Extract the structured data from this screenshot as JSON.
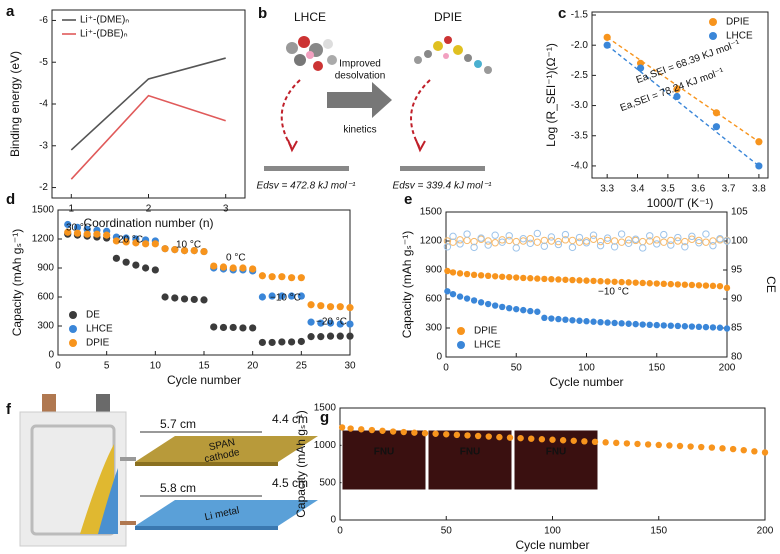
{
  "chart_data": [
    {
      "type": "line",
      "panel": "a",
      "x": [
        1,
        2,
        3
      ],
      "xlim": [
        0.75,
        3.25
      ],
      "xticks": [
        1,
        2,
        3
      ],
      "ylim": [
        -1.75,
        -6.25
      ],
      "yticks": [
        -2,
        -3,
        -4,
        -5,
        -6
      ],
      "x_label": "Coordination number (n)",
      "y_label": "Binding energy (eV)",
      "legend": "upper left",
      "series": [
        {
          "name": "Li⁺-(DME)ₙ",
          "color": "#555555",
          "values": [
            -2.9,
            -4.6,
            -5.1
          ]
        },
        {
          "name": "Li⁺-(DBE)ₙ",
          "color": "#e05a5a",
          "values": [
            -2.2,
            -4.2,
            -3.6
          ]
        }
      ]
    },
    {
      "type": "scatter",
      "panel": "c",
      "x": [
        3.3,
        3.41,
        3.53,
        3.66,
        3.8
      ],
      "xlim": [
        3.25,
        3.83
      ],
      "xticks": [
        3.3,
        3.4,
        3.5,
        3.6,
        3.7,
        3.8
      ],
      "ylim": [
        -4.2,
        -1.45
      ],
      "yticks": [
        {
          "value": -4,
          "label": "-4.0"
        },
        -3.5,
        {
          "value": -3,
          "label": "-3.0"
        },
        -2.5,
        {
          "value": -2,
          "label": "-2.0"
        },
        -1.5
      ],
      "x_label": "1000/T (K⁻¹)",
      "y_label": "Log (R_SEI⁻¹)(Ω⁻¹)",
      "legend": "upper right",
      "trendline": "dashed",
      "annotations": [
        "Ea,SEI = 68.39 KJ mol⁻¹",
        "Ea,SEI = 78.24 KJ mol⁻¹"
      ],
      "series": [
        {
          "name": "DPIE",
          "color": "#f7941d",
          "values": [
            -1.87,
            -2.3,
            -2.73,
            -3.12,
            -3.6
          ]
        },
        {
          "name": "LHCE",
          "color": "#3a86d8",
          "values": [
            -2.0,
            -2.38,
            -2.85,
            -3.35,
            -4.0
          ]
        }
      ]
    },
    {
      "type": "scatter",
      "panel": "d",
      "x": [
        1,
        2,
        3,
        4,
        5,
        6,
        7,
        8,
        9,
        10,
        11,
        12,
        13,
        14,
        15,
        16,
        17,
        18,
        19,
        20,
        21,
        22,
        23,
        24,
        25,
        26,
        27,
        28,
        29,
        30
      ],
      "xlim": [
        0,
        30
      ],
      "xticks": [
        0,
        5,
        10,
        15,
        20,
        25,
        30
      ],
      "ylim": [
        0,
        1500
      ],
      "yticks": [
        0,
        300,
        600,
        900,
        1200,
        1500
      ],
      "x_label": "Cycle number",
      "y_label": "Capacity (mAh gₛ⁻¹)",
      "legend": "lower left",
      "annotations": [
        "30 °C",
        "20 °C",
        "10 °C",
        "0 °C",
        "−10 °C",
        "−20 °C"
      ],
      "series": [
        {
          "name": "DE",
          "color": "#3b3b3b",
          "values": [
            1250,
            1240,
            1230,
            1220,
            1210,
            1000,
            960,
            930,
            900,
            880,
            600,
            590,
            580,
            575,
            570,
            290,
            285,
            285,
            280,
            280,
            130,
            130,
            135,
            135,
            140,
            190,
            190,
            195,
            195,
            195
          ]
        },
        {
          "name": "LHCE",
          "color": "#3a86d8",
          "values": [
            1350,
            1320,
            1300,
            1290,
            1280,
            1220,
            1210,
            1200,
            1190,
            1180,
            1100,
            1090,
            1080,
            1080,
            1070,
            900,
            890,
            880,
            880,
            870,
            600,
            610,
            610,
            610,
            610,
            340,
            330,
            330,
            320,
            320
          ]
        },
        {
          "name": "DPIE",
          "color": "#f7941d",
          "values": [
            1270,
            1260,
            1250,
            1250,
            1240,
            1180,
            1170,
            1160,
            1150,
            1150,
            1100,
            1090,
            1080,
            1080,
            1070,
            920,
            910,
            900,
            900,
            890,
            820,
            810,
            810,
            800,
            800,
            520,
            510,
            500,
            500,
            490
          ]
        }
      ]
    },
    {
      "type": "scatter",
      "panel": "e",
      "x": [
        1,
        5,
        10,
        15,
        20,
        25,
        30,
        35,
        40,
        45,
        50,
        55,
        60,
        65,
        70,
        75,
        80,
        85,
        90,
        95,
        100,
        105,
        110,
        115,
        120,
        125,
        130,
        135,
        140,
        145,
        150,
        155,
        160,
        165,
        170,
        175,
        180,
        185,
        190,
        195,
        200
      ],
      "xlim": [
        0,
        200
      ],
      "xticks": [
        0,
        50,
        100,
        150,
        200
      ],
      "ylim": [
        0,
        1500
      ],
      "yticks": [
        0,
        300,
        600,
        900,
        1200,
        1500
      ],
      "y2lim": [
        80,
        105
      ],
      "y2ticks": [
        80,
        85,
        90,
        95,
        100,
        105
      ],
      "x_label": "Cycle number",
      "y_label": "Capacity (mAh gₛ⁻¹)",
      "y2_label": "CE",
      "legend": "lower left",
      "annotations": [
        "−10 °C"
      ],
      "series": [
        {
          "name": "DPIE",
          "color": "#f7941d",
          "values": [
            890,
            875,
            865,
            858,
            850,
            845,
            840,
            835,
            830,
            826,
            822,
            818,
            815,
            811,
            808,
            805,
            802,
            799,
            796,
            793,
            790,
            787,
            784,
            781,
            778,
            775,
            772,
            769,
            766,
            763,
            760,
            757,
            754,
            751,
            748,
            745,
            742,
            739,
            736,
            733,
            715
          ]
        },
        {
          "name": "LHCE",
          "color": "#3a86d8",
          "values": [
            680,
            650,
            625,
            605,
            585,
            565,
            548,
            532,
            518,
            505,
            495,
            485,
            475,
            468,
            405,
            398,
            392,
            386,
            380,
            375,
            370,
            365,
            360,
            356,
            352,
            348,
            344,
            340,
            336,
            333,
            330,
            327,
            324,
            321,
            318,
            315,
            312,
            309,
            306,
            303,
            295
          ]
        },
        {
          "color": "#f7b96a",
          "axis": "y2",
          "marker": "open",
          "values": [
            100.0,
            99.8,
            100.2,
            100.1,
            99.9,
            100.3,
            100.0,
            99.7,
            100.2,
            100.1,
            99.9,
            100.0,
            100.4,
            99.8,
            100.1,
            100.0,
            99.9,
            100.2,
            100.1,
            99.8,
            100.0,
            100.3,
            99.9,
            100.1,
            100.0,
            99.8,
            100.2,
            100.1,
            99.9,
            100.0,
            100.2,
            99.8,
            100.1,
            100.0,
            99.9,
            100.3,
            100.1,
            99.8,
            100.0,
            100.2,
            100.1
          ]
        },
        {
          "color": "#9cc3ea",
          "axis": "y2",
          "marker": "open",
          "values": [
            99.0,
            100.8,
            99.5,
            101.2,
            98.9,
            100.5,
            99.3,
            101.0,
            99.8,
            100.9,
            98.8,
            100.4,
            99.6,
            101.3,
            99.1,
            100.7,
            99.4,
            101.1,
            98.9,
            100.6,
            99.7,
            101.0,
            99.2,
            100.5,
            99.0,
            101.2,
            99.6,
            100.3,
            98.8,
            100.9,
            99.5,
            101.1,
            99.3,
            100.6,
            99.0,
            100.8,
            99.7,
            101.2,
            99.2,
            100.4,
            100.0
          ]
        }
      ]
    },
    {
      "type": "scatter",
      "panel": "g",
      "x": [
        1,
        5,
        10,
        15,
        20,
        25,
        30,
        35,
        40,
        45,
        50,
        55,
        60,
        65,
        70,
        75,
        80,
        85,
        90,
        95,
        100,
        105,
        110,
        115,
        120,
        125,
        130,
        135,
        140,
        145,
        150,
        155,
        160,
        165,
        170,
        175,
        180,
        185,
        190,
        195,
        200
      ],
      "xlim": [
        0,
        200
      ],
      "xticks": [
        0,
        50,
        100,
        150,
        200
      ],
      "ylim": [
        0,
        1500
      ],
      "yticks": [
        0,
        500,
        1000,
        1500
      ],
      "x_label": "Cycle number",
      "y_label": "Capacity (mAh gₛ⁻¹)",
      "photo_text": [
        "FNU",
        "FNU",
        "FNU"
      ],
      "series": [
        {
          "color": "#f7941d",
          "values": [
            1240,
            1225,
            1215,
            1205,
            1195,
            1185,
            1178,
            1170,
            1162,
            1155,
            1148,
            1140,
            1133,
            1125,
            1118,
            1110,
            1103,
            1096,
            1089,
            1082,
            1075,
            1068,
            1061,
            1054,
            1047,
            1040,
            1033,
            1026,
            1019,
            1012,
            1005,
            998,
            991,
            984,
            977,
            970,
            960,
            950,
            935,
            920,
            905
          ]
        }
      ]
    }
  ],
  "diagram_b": {
    "panel": "b",
    "left": "LHCE",
    "right": "DPIE",
    "arrow_text": [
      "Improved",
      "desolvation",
      "kinetics"
    ],
    "left_energy": "Edsv = 472.8 kJ mol⁻¹",
    "right_energy": "Edsv = 339.4 kJ mol⁻¹"
  },
  "diagram_f": {
    "panel": "f",
    "cathode_length": "5.7 cm",
    "cathode_width": "4.4 cm",
    "cathode": [
      "SPAN",
      "cathode"
    ],
    "anode_length": "5.8 cm",
    "anode_width": "4.5 cm",
    "anode": "Li metal"
  }
}
